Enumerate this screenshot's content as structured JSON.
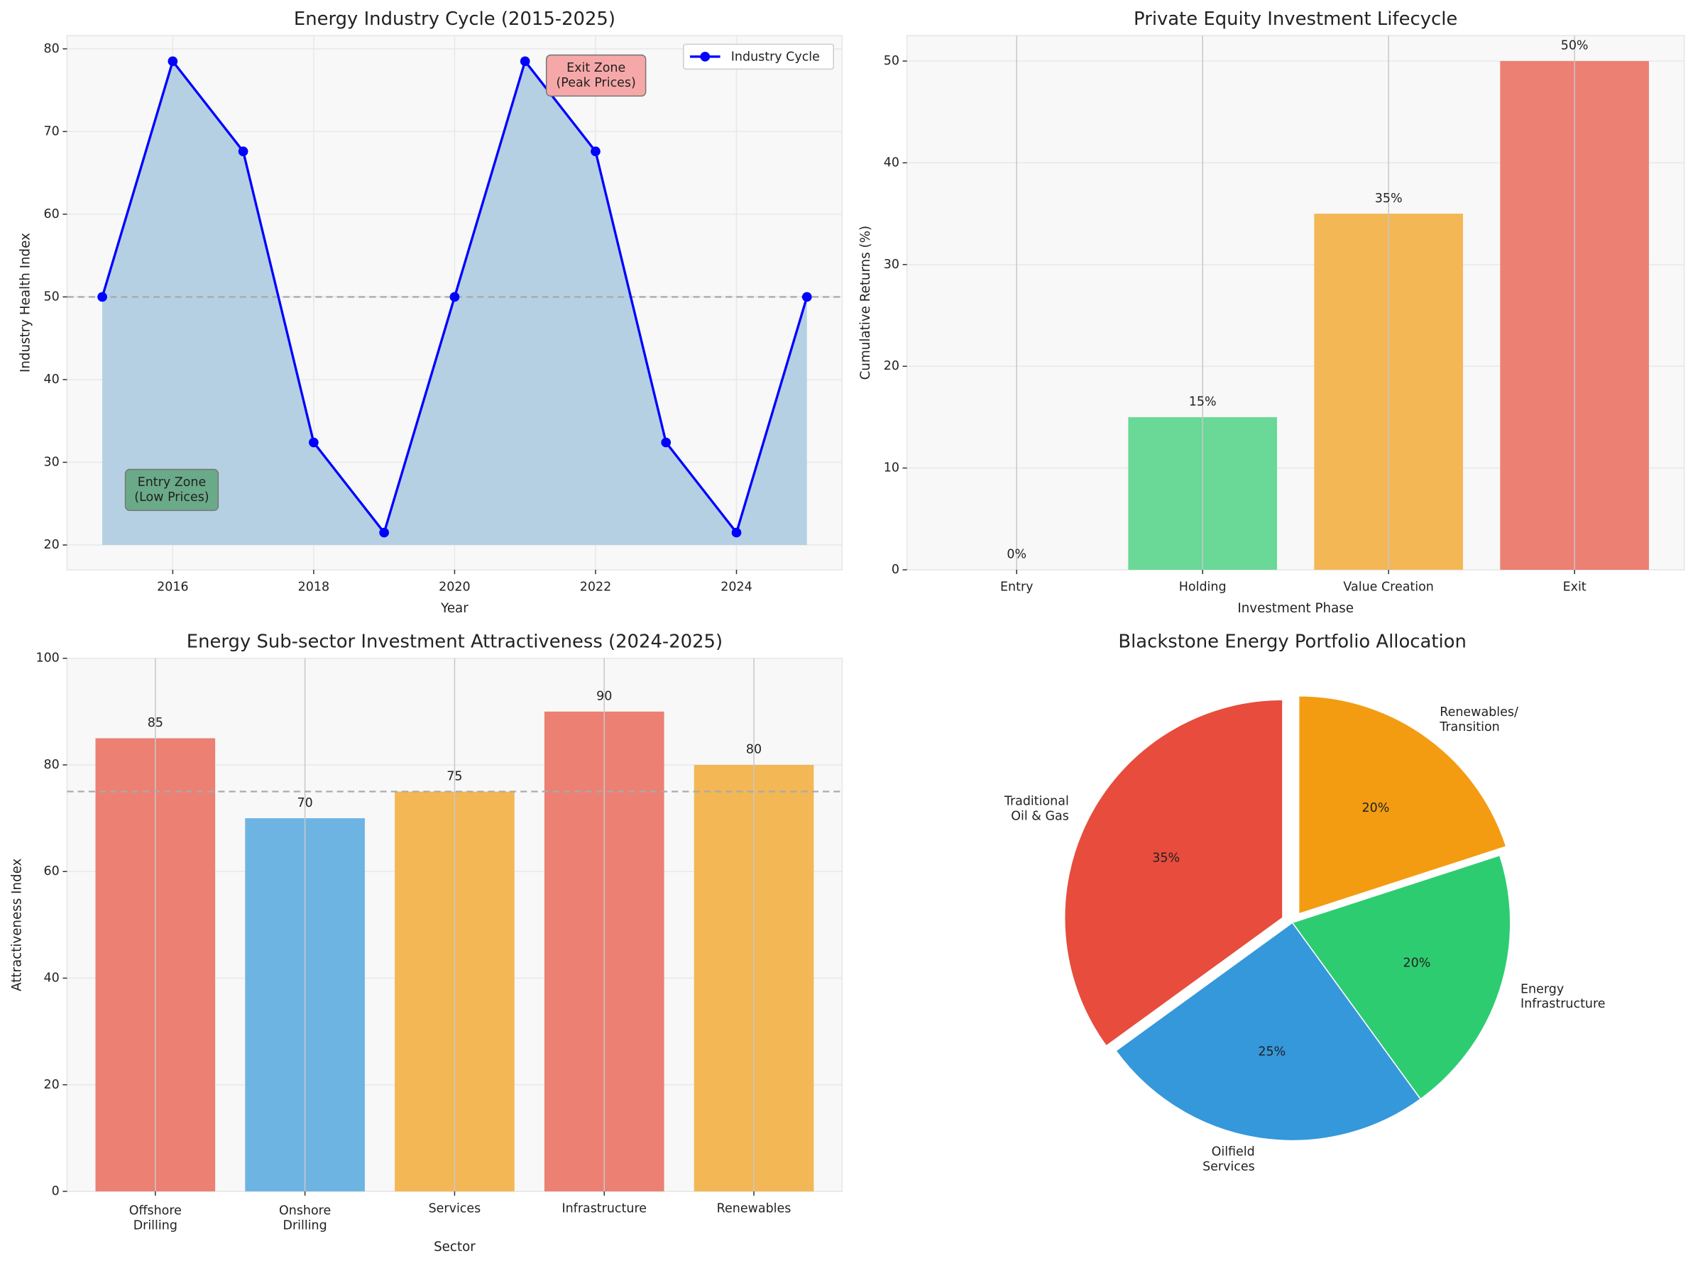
{
  "chart_data": [
    {
      "type": "line",
      "title": "Energy Industry Cycle (2015-2025)",
      "x_label": "Year",
      "y_label": "Industry Health Index",
      "x": [
        2015,
        2016,
        2017,
        2018,
        2019,
        2020,
        2021,
        2022,
        2023,
        2024,
        2025
      ],
      "series": [
        {
          "name": "Industry Cycle",
          "color": "#0000ff",
          "values": [
            50,
            78.5,
            67.6,
            32.4,
            21.5,
            50,
            78.5,
            67.6,
            32.4,
            21.5,
            50
          ]
        }
      ],
      "fill_color": "#b5d0e3",
      "fill_to": 20,
      "reference_line": 50,
      "xlim": [
        2014.5,
        2025.5
      ],
      "ylim": [
        17,
        81.6
      ],
      "xticks": [
        2016,
        2018,
        2020,
        2022,
        2024
      ],
      "yticks": [
        20,
        30,
        40,
        50,
        60,
        70,
        80
      ],
      "grid": true,
      "legend": "upper right",
      "annotations": [
        {
          "text": "Entry Zone\n(Low Prices)",
          "color": "#6aaa88"
        },
        {
          "text": "Exit Zone\n(Peak Prices)",
          "color": "#f6a8a8"
        }
      ]
    },
    {
      "type": "bar",
      "title": "Private Equity Investment Lifecycle",
      "x_label": "Investment Phase",
      "y_label": "Cumulative Returns (%)",
      "categories": [
        "Entry",
        "Holding",
        "Value Creation",
        "Exit"
      ],
      "values": [
        0,
        15,
        35,
        50
      ],
      "value_labels": [
        "0%",
        "15%",
        "35%",
        "50%"
      ],
      "colors": [
        "#95a5a6",
        "#6ad897",
        "#f3b755",
        "#ec8073"
      ],
      "ylim": [
        0,
        52.5
      ],
      "yticks": [
        0,
        10,
        20,
        30,
        40,
        50
      ],
      "grid": true
    },
    {
      "type": "bar",
      "title": "Energy Sub-sector Investment Attractiveness (2024-2025)",
      "x_label": "Sector",
      "y_label": "Attractiveness Index",
      "categories": [
        "Offshore\nDrilling",
        "Onshore\nDrilling",
        "Services",
        "Infrastructure",
        "Renewables"
      ],
      "values": [
        85,
        70,
        75,
        90,
        80
      ],
      "colors": [
        "#ec8073",
        "#6eb4e3",
        "#f3b755",
        "#ec8073",
        "#f3b755"
      ],
      "reference_line": 75,
      "ylim": [
        0,
        100
      ],
      "yticks": [
        0,
        20,
        40,
        60,
        80,
        100
      ],
      "grid": true
    },
    {
      "type": "pie",
      "title": "Blackstone Energy Portfolio Allocation",
      "categories": [
        "Traditional\nOil & Gas",
        "Oilfield\nServices",
        "Energy\nInfrastructure",
        "Renewables/\nTransition"
      ],
      "values": [
        35,
        25,
        20,
        20
      ],
      "value_labels": [
        "35%",
        "25%",
        "20%",
        "20%"
      ],
      "colors": [
        "#e74c3c",
        "#3498db",
        "#2ecc71",
        "#f39c12"
      ],
      "explode": [
        true,
        false,
        false,
        true
      ]
    }
  ]
}
